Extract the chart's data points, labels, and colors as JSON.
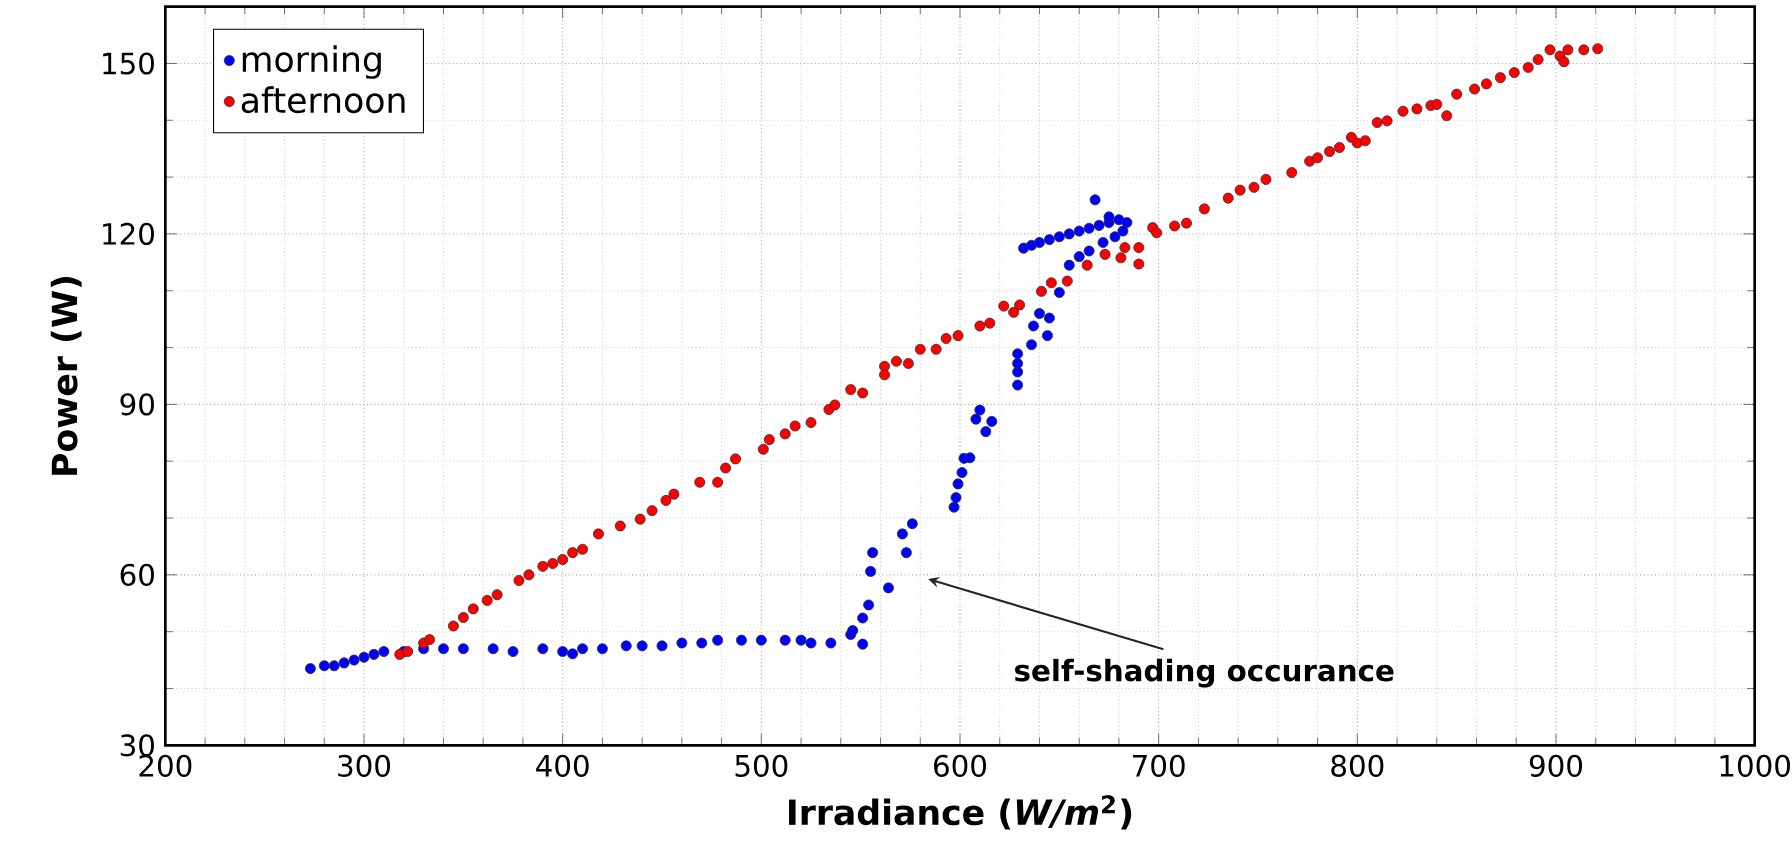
{
  "chart_data": {
    "type": "scatter",
    "xlabel": "Irradiance (*W/m*$^{2}$)",
    "ylabel": "Power (W)",
    "xlim": [
      200,
      1000
    ],
    "ylim": [
      30,
      160
    ],
    "xticks": [
      200,
      300,
      400,
      500,
      600,
      700,
      800,
      900,
      1000
    ],
    "yticks": [
      30,
      60,
      90,
      120,
      150
    ],
    "grid": true,
    "legend": "top left",
    "marker": "circle",
    "annotations": [
      "self-shading occurance"
    ],
    "series": [
      {
        "name": "morning",
        "color": "#0000ff",
        "x": [
          273,
          280,
          285,
          290,
          295,
          300,
          305,
          310,
          320,
          330,
          340,
          350,
          365,
          375,
          390,
          400,
          405,
          410,
          420,
          432,
          440,
          450,
          460,
          470,
          478,
          490,
          500,
          512,
          520,
          525,
          535,
          545,
          546,
          551,
          551,
          554,
          555,
          556,
          564,
          571,
          573,
          576,
          597,
          598,
          599,
          601,
          602,
          605,
          608,
          610,
          613,
          616,
          629,
          629,
          629,
          629,
          636,
          637,
          644,
          645,
          640,
          650,
          632,
          636,
          640,
          645,
          650,
          655,
          660,
          665,
          670,
          675,
          680,
          684,
          682,
          678,
          672,
          665,
          660,
          655,
          668,
          675
        ],
        "values": [
          43.5,
          44,
          44,
          44.5,
          45,
          45.5,
          46,
          46.5,
          46.5,
          47,
          47,
          47,
          47,
          46.5,
          47,
          46.5,
          46.1,
          47,
          47,
          47.5,
          47.5,
          47.5,
          48,
          48,
          48.5,
          48.5,
          48.5,
          48.5,
          48.5,
          48,
          48,
          49.5,
          50.2,
          47.8,
          52.4,
          54.7,
          60.6,
          63.9,
          57.7,
          67.2,
          63.9,
          69,
          71.9,
          73.6,
          76,
          78,
          80.5,
          80.6,
          87.4,
          89,
          85.2,
          87,
          93.4,
          95.7,
          97.2,
          98.9,
          100.5,
          103.8,
          102.1,
          105.2,
          106,
          109.7,
          117.5,
          118,
          118.5,
          119,
          119.5,
          120,
          120.5,
          121,
          121.5,
          122,
          122.5,
          122,
          120.5,
          119.5,
          118.5,
          117,
          116,
          114.5,
          126,
          123
        ]
      },
      {
        "name": "afternoon",
        "color": "#ff0000",
        "x": [
          318,
          322,
          330,
          333,
          345,
          350,
          355,
          362,
          367,
          378,
          383,
          390,
          395,
          400,
          405,
          410,
          418,
          429,
          439,
          445,
          452,
          456,
          469,
          478,
          482,
          487,
          501,
          504,
          512,
          517,
          525,
          534,
          537,
          545,
          551,
          562,
          562,
          568,
          574,
          580,
          588,
          593,
          599,
          610,
          615,
          622,
          627,
          630,
          641,
          646,
          654,
          664,
          673,
          681,
          683,
          690,
          690,
          697,
          699,
          708,
          714,
          723,
          735,
          741,
          748,
          754,
          767,
          776,
          780,
          786,
          791,
          797,
          800,
          804,
          810,
          815,
          823,
          830,
          837,
          840,
          845,
          850,
          859,
          865,
          872,
          879,
          886,
          891,
          897,
          902,
          904,
          906,
          914,
          921
        ],
        "values": [
          46,
          46.5,
          48,
          48.6,
          51,
          52.5,
          54,
          55.5,
          56.5,
          59,
          60,
          61.5,
          62,
          62.7,
          63.9,
          64.5,
          67.2,
          68.6,
          69.8,
          71.3,
          73.1,
          74.2,
          76.3,
          76.3,
          78.8,
          80.4,
          82.1,
          83.8,
          84.8,
          86.2,
          86.8,
          89.1,
          89.9,
          92.6,
          92,
          96.7,
          95.2,
          97.6,
          97.2,
          99.7,
          99.7,
          101.6,
          102.1,
          103.8,
          104.3,
          107.3,
          106.2,
          107.5,
          109.9,
          111.4,
          111.7,
          114.5,
          116.4,
          115.8,
          117.6,
          117.6,
          114.7,
          121.1,
          120.2,
          121.4,
          121.9,
          124.4,
          126.3,
          127.7,
          128.2,
          129.6,
          130.8,
          132.8,
          133.4,
          134.5,
          135.2,
          137,
          136,
          136.4,
          139.6,
          139.9,
          141.6,
          142,
          142.6,
          142.8,
          140.8,
          144.6,
          145.5,
          146.4,
          147.5,
          148.4,
          149.3,
          150.7,
          152.4,
          151.3,
          150.3,
          152.4,
          152.4,
          152.6
        ]
      }
    ]
  }
}
